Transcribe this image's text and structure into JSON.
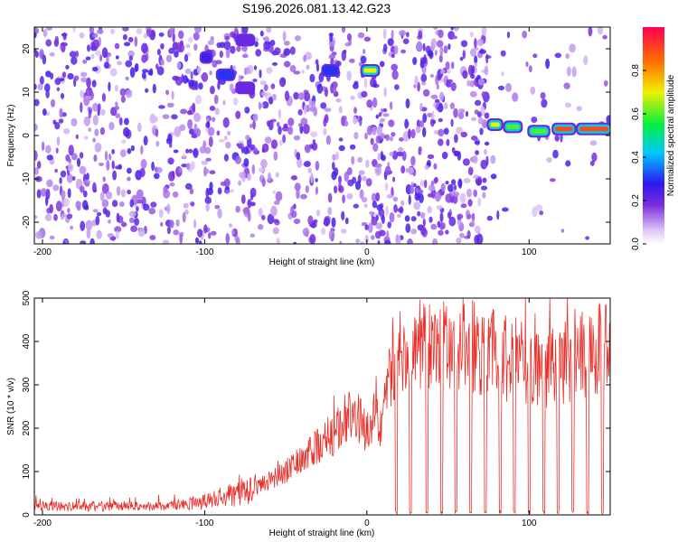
{
  "title": "S196.2026.081.13.42.G23",
  "top_panel": {
    "xlabel": "Height of straight line (km)",
    "ylabel": "Frequency (Hz)",
    "x_ticks": [
      "-200",
      "-100",
      "0",
      "100"
    ],
    "y_ticks": [
      "-20",
      "-10",
      "0",
      "10",
      "20"
    ],
    "colorbar_label": "Normalized spectral amplitude",
    "colorbar_ticks": [
      "0.0",
      "0.2",
      "0.4",
      "0.6",
      "0.8"
    ]
  },
  "bottom_panel": {
    "xlabel": "Height of straight line (km)",
    "ylabel": "SNR (10 * v/v)",
    "x_ticks": [
      "-200",
      "-100",
      "0",
      "100"
    ],
    "y_ticks": [
      "0",
      "100",
      "200",
      "300",
      "400",
      "500"
    ]
  },
  "chart_data": [
    {
      "type": "heatmap",
      "title": "S196.2026.081.13.42.G23",
      "xlabel": "Height of straight line (km)",
      "ylabel": "Frequency (Hz)",
      "xlim": [
        -205,
        150
      ],
      "ylim": [
        -25,
        25
      ],
      "colorbar": {
        "label": "Normalized spectral amplitude",
        "range": [
          0,
          1
        ]
      },
      "dominant_tones": [
        {
          "x_range": [
            -102,
            -96
          ],
          "frequency": 18,
          "amplitude": 0.25
        },
        {
          "x_range": [
            -92,
            -82
          ],
          "frequency": 14,
          "amplitude": 0.3
        },
        {
          "x_range": [
            -80,
            -70
          ],
          "frequency": 22,
          "amplitude": 0.2
        },
        {
          "x_range": [
            -80,
            -70
          ],
          "frequency": 11,
          "amplitude": 0.2
        },
        {
          "x_range": [
            -27,
            -18
          ],
          "frequency": 15,
          "amplitude": 0.3
        },
        {
          "x_range": [
            -3,
            7
          ],
          "frequency": 15,
          "amplitude": 0.7
        },
        {
          "x_range": [
            75,
            83
          ],
          "frequency": 2.5,
          "amplitude": 0.7
        },
        {
          "x_range": [
            85,
            95
          ],
          "frequency": 2,
          "amplitude": 0.6
        },
        {
          "x_range": [
            100,
            112
          ],
          "frequency": 1,
          "amplitude": 0.6
        },
        {
          "x_range": [
            115,
            128
          ],
          "frequency": 1.5,
          "amplitude": 0.9
        },
        {
          "x_range": [
            130,
            150
          ],
          "frequency": 1.5,
          "amplitude": 0.9
        }
      ]
    },
    {
      "type": "line",
      "xlabel": "Height of straight line (km)",
      "ylabel": "SNR (10 * v/v)",
      "xlim": [
        -205,
        150
      ],
      "ylim": [
        0,
        500
      ],
      "series": [
        {
          "color": "#e8302a",
          "x": [
            -205,
            -180,
            -160,
            -140,
            -120,
            -110,
            -100,
            -90,
            -80,
            -70,
            -60,
            -50,
            -40,
            -30,
            -20,
            -15,
            -10,
            -5,
            0,
            5,
            10,
            15,
            20,
            25,
            30,
            35,
            40,
            45,
            50,
            55,
            60,
            65,
            70,
            75,
            80,
            85,
            90,
            95,
            100,
            105,
            110,
            115,
            120,
            125,
            130,
            135,
            140,
            145,
            150
          ],
          "y": [
            20,
            20,
            20,
            20,
            20,
            25,
            30,
            40,
            50,
            60,
            80,
            100,
            130,
            160,
            190,
            220,
            240,
            220,
            200,
            210,
            220,
            330,
            360,
            380,
            390,
            410,
            400,
            410,
            400,
            400,
            400,
            390,
            380,
            380,
            390,
            360,
            360,
            350,
            340,
            330,
            320,
            330,
            340,
            360,
            380,
            370,
            380,
            385,
            390
          ]
        }
      ],
      "periodic_dropouts_to_zero": [
        18,
        27,
        37,
        46,
        55,
        64,
        73,
        82,
        91,
        100,
        109,
        118,
        127,
        136,
        145
      ]
    }
  ],
  "colors": {
    "line": "#e8302a",
    "noise": "#7a2bdc"
  }
}
